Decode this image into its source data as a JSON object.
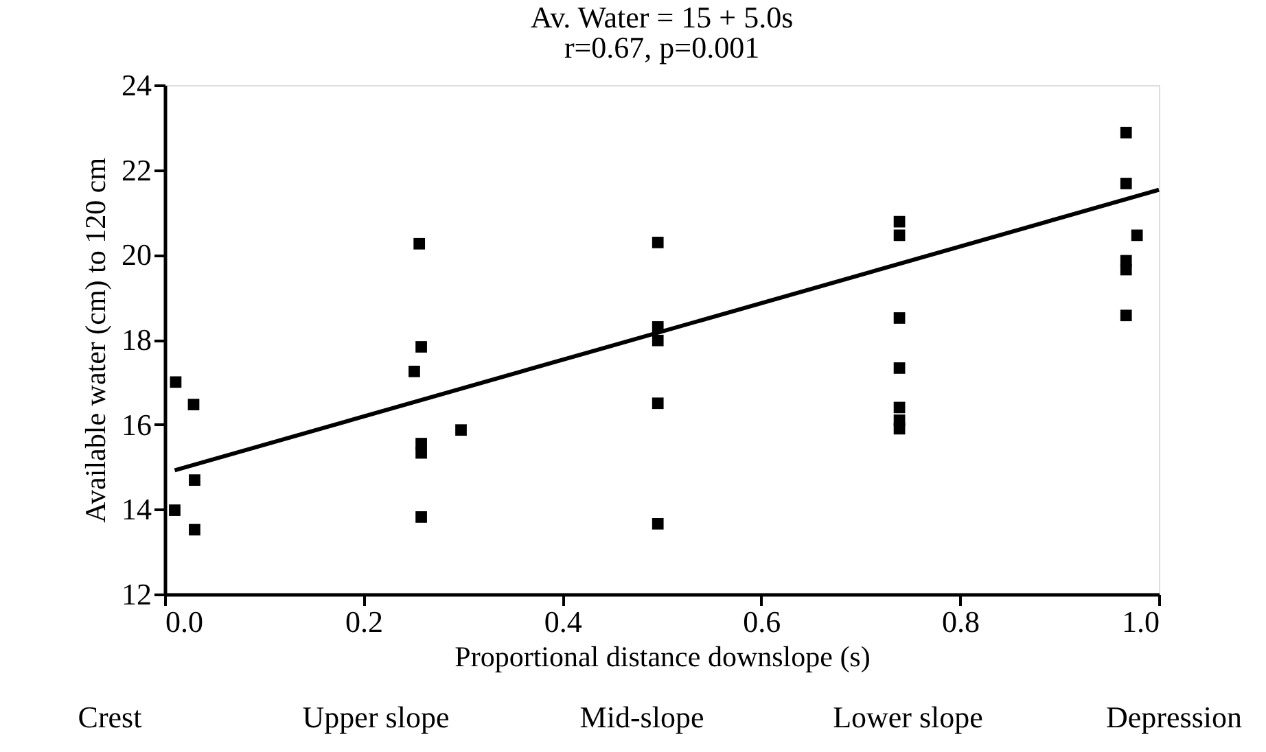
{
  "chart_data": {
    "type": "scatter",
    "title": "Av. Water = 15 + 5.0s",
    "subtitle": "r=0.67,  p=0.001",
    "xlabel": "Proportional distance downslope (s)",
    "ylabel": "Available water  (cm) to 120 cm",
    "xlim": [
      0,
      1.0
    ],
    "xticks": [
      {
        "value": 0,
        "label": "0.0"
      },
      0.2,
      0.4,
      0.6,
      0.8,
      {
        "value": 1.0,
        "label": "1.0"
      }
    ],
    "ylim": [
      12,
      24
    ],
    "yticks": [
      12,
      14,
      16,
      18,
      20,
      22,
      24
    ],
    "grid": false,
    "annotations": [
      "Crest",
      "Upper slope",
      "Mid-slope",
      "Lower slope",
      "Depression"
    ],
    "series": [
      {
        "color": "#000000",
        "marker": "square",
        "x": [
          0.011,
          0.029,
          0.03,
          0.01,
          0.03,
          0.256,
          0.258,
          0.251,
          0.258,
          0.258,
          0.258,
          0.298,
          0.496,
          0.496,
          0.496,
          0.496,
          0.496,
          0.739,
          0.739,
          0.739,
          0.739,
          0.739,
          0.739,
          0.739,
          0.967,
          0.967,
          0.978,
          0.967,
          0.967,
          0.967
        ],
        "values": [
          17.0,
          16.47,
          14.69,
          13.98,
          13.52,
          20.26,
          17.83,
          17.25,
          15.55,
          15.33,
          13.82,
          15.87,
          20.29,
          18.3,
          17.98,
          16.5,
          13.66,
          20.78,
          20.46,
          18.51,
          17.33,
          16.4,
          16.1,
          15.9,
          22.88,
          21.68,
          20.46,
          19.86,
          19.65,
          18.57
        ]
      },
      {
        "type": "line",
        "color": "#000000",
        "line_style": "solid",
        "marker": "none",
        "x": [
          0.01,
          1.0
        ],
        "values": [
          14.92,
          21.53
        ]
      }
    ]
  }
}
